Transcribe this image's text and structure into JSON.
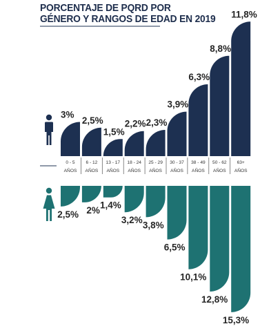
{
  "title": {
    "line1": "PORCENTAJE DE PQRD POR",
    "line2": "GÉNERO Y RANGOS DE EDAD EN 2019"
  },
  "colors": {
    "male": "#1d3051",
    "female": "#1e7272",
    "text": "#262626",
    "separator": "#1d3051"
  },
  "icons": {
    "male": "man-icon",
    "female": "woman-icon"
  },
  "chart_data": {
    "type": "bar",
    "title": "PORCENTAJE DE PQRD POR GÉNERO Y RANGOS DE EDAD EN 2019",
    "categories": [
      [
        "0 - 5",
        "AÑOS"
      ],
      [
        "6 - 12",
        "AÑOS"
      ],
      [
        "13 - 17",
        "AÑOS"
      ],
      [
        "18 - 24",
        "AÑOS"
      ],
      [
        "25 - 29",
        "AÑOS"
      ],
      [
        "30 - 37",
        "AÑOS"
      ],
      [
        "38 - 49",
        "AÑOS"
      ],
      [
        "50 - 62",
        "AÑOS"
      ],
      [
        "63+",
        "AÑOS"
      ]
    ],
    "series": [
      {
        "gender": "male",
        "values": [
          3,
          2.5,
          1.5,
          2.2,
          2.3,
          3.9,
          6.3,
          8.8,
          11.8
        ],
        "labels": [
          "3%",
          "2,5%",
          "1,5%",
          "2,2%",
          "2,3%",
          "3,9%",
          "6,3%",
          "8,8%",
          "11,8%"
        ]
      },
      {
        "gender": "female",
        "values": [
          2.5,
          2,
          1.4,
          3.2,
          3.8,
          6.5,
          10.1,
          12.8,
          15.3
        ],
        "labels": [
          "2,5%",
          "2%",
          "1,4%",
          "3,2%",
          "3,8%",
          "6,5%",
          "10,1%",
          "12,8%",
          "15,3%"
        ]
      }
    ],
    "unit": "%",
    "orientation": "diverging (male up, female down)",
    "grid": false
  }
}
